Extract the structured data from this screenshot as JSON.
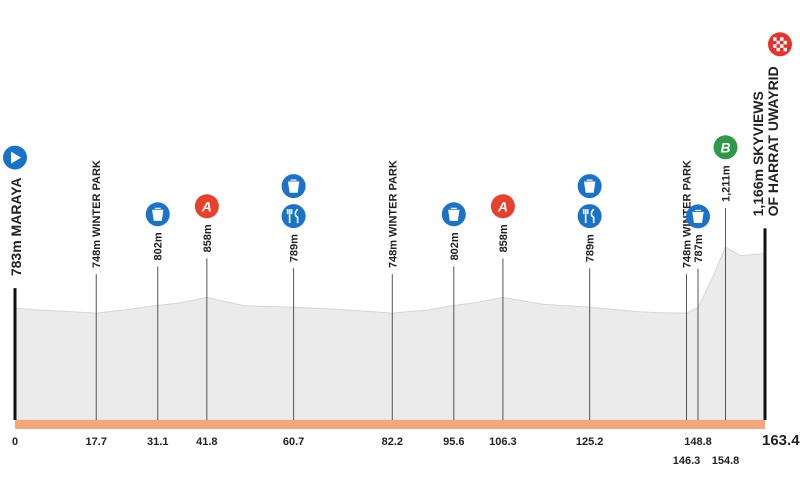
{
  "chart_data": {
    "type": "profile",
    "xlim": [
      0,
      163.4
    ],
    "ylim": [
      0,
      1400
    ],
    "x": [
      0,
      5,
      10,
      17.7,
      25,
      31.1,
      36,
      41.8,
      50,
      60.7,
      70,
      82.2,
      90,
      95.6,
      100,
      106.3,
      115,
      125.2,
      135,
      140,
      146.3,
      148.8,
      152,
      154.8,
      158,
      163.4
    ],
    "values": [
      783,
      770,
      762,
      748,
      775,
      802,
      820,
      858,
      800,
      789,
      775,
      748,
      770,
      802,
      820,
      858,
      810,
      789,
      760,
      752,
      748,
      787,
      1000,
      1211,
      1150,
      1166
    ],
    "color": "#ebebeb",
    "base_color": "#f4a77a",
    "start": {
      "label": "783m MARAYA",
      "color": "#1a73c9"
    },
    "finish": {
      "label": [
        "1,166m SKYVIEWS",
        "OF HARRAT UWAYRID"
      ],
      "color": "#e8322b"
    },
    "markers": [
      {
        "km": 17.7,
        "label": "748m WINTER PARK",
        "icons": []
      },
      {
        "km": 31.1,
        "label": "802m",
        "icons": [
          {
            "type": "feed",
            "color": "#1a73c9"
          }
        ]
      },
      {
        "km": 41.8,
        "label": "858m",
        "icons": [
          {
            "type": "sprint",
            "text": "A",
            "color": "#e8402a"
          }
        ]
      },
      {
        "km": 60.7,
        "label": "789m",
        "icons": [
          {
            "type": "food",
            "color": "#1a73c9"
          },
          {
            "type": "feed",
            "color": "#1a73c9"
          }
        ]
      },
      {
        "km": 82.2,
        "label": "748m WINTER PARK",
        "icons": []
      },
      {
        "km": 95.6,
        "label": "802m",
        "icons": [
          {
            "type": "feed",
            "color": "#1a73c9"
          }
        ]
      },
      {
        "km": 106.3,
        "label": "858m",
        "icons": [
          {
            "type": "sprint",
            "text": "A",
            "color": "#e8402a"
          }
        ]
      },
      {
        "km": 125.2,
        "label": "789m",
        "icons": [
          {
            "type": "food",
            "color": "#1a73c9"
          },
          {
            "type": "feed",
            "color": "#1a73c9"
          }
        ]
      },
      {
        "km": 146.3,
        "label": "748m WINTER PARK",
        "icons": []
      },
      {
        "km": 148.8,
        "label": "787m",
        "icons": [
          {
            "type": "feed",
            "color": "#1a73c9"
          }
        ]
      },
      {
        "km": 154.8,
        "label": "1,211m",
        "icons": [
          {
            "type": "bonus",
            "text": "B",
            "color": "#2e9a47"
          }
        ]
      }
    ],
    "xticks": [
      0,
      17.7,
      31.1,
      41.8,
      60.7,
      82.2,
      95.6,
      106.3,
      125.2,
      148.8,
      146.3,
      154.8,
      {
        "value": 163.4,
        "label": "163.4 km"
      }
    ]
  }
}
